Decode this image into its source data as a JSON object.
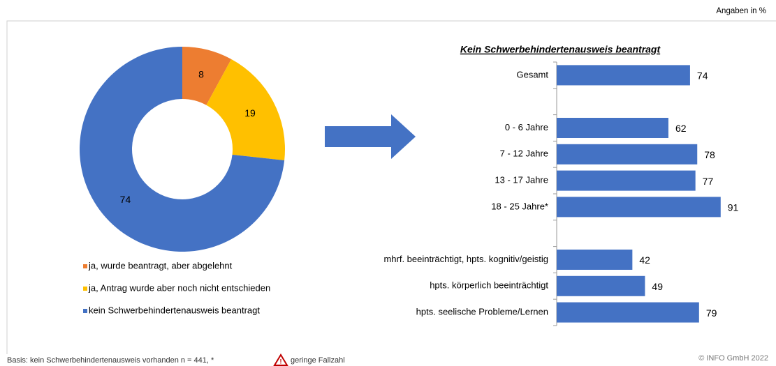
{
  "header_note": "Angaben in %",
  "chart_data": [
    {
      "type": "donut",
      "categories": [
        "ja, wurde beantragt, aber abgelehnt",
        "ja, Antrag wurde aber noch nicht entschieden",
        "kein Schwerbehindertenausweis beantragt"
      ],
      "values": [
        8,
        19,
        74
      ],
      "colors": [
        "#ED7D31",
        "#FFC000",
        "#4472C4"
      ],
      "label_colors": [
        "#000000",
        "#000000",
        "#FFFFFF"
      ],
      "legend": "bottom"
    },
    {
      "type": "hbar",
      "title": "Kein Schwerbehindertenausweis beantragt",
      "categories": [
        "Gesamt",
        null,
        "0 - 6 Jahre",
        "7 - 12 Jahre",
        "13 - 17 Jahre",
        "18 - 25 Jahre*",
        null,
        "mhrf. beeinträchtigt, hpts. kognitiv/geistig",
        "hpts. körperlich beeinträchtigt",
        "hpts. seelische Probleme/Lernen"
      ],
      "values": [
        74,
        null,
        62,
        78,
        77,
        91,
        null,
        42,
        49,
        79
      ],
      "color": "#4472C4"
    }
  ],
  "footer": {
    "basis": "Basis: kein Schwerbehindertenausweis vorhanden n = 441, *",
    "warning": "geringe Fallzahl",
    "copyright": "© INFO GmbH 2022"
  }
}
